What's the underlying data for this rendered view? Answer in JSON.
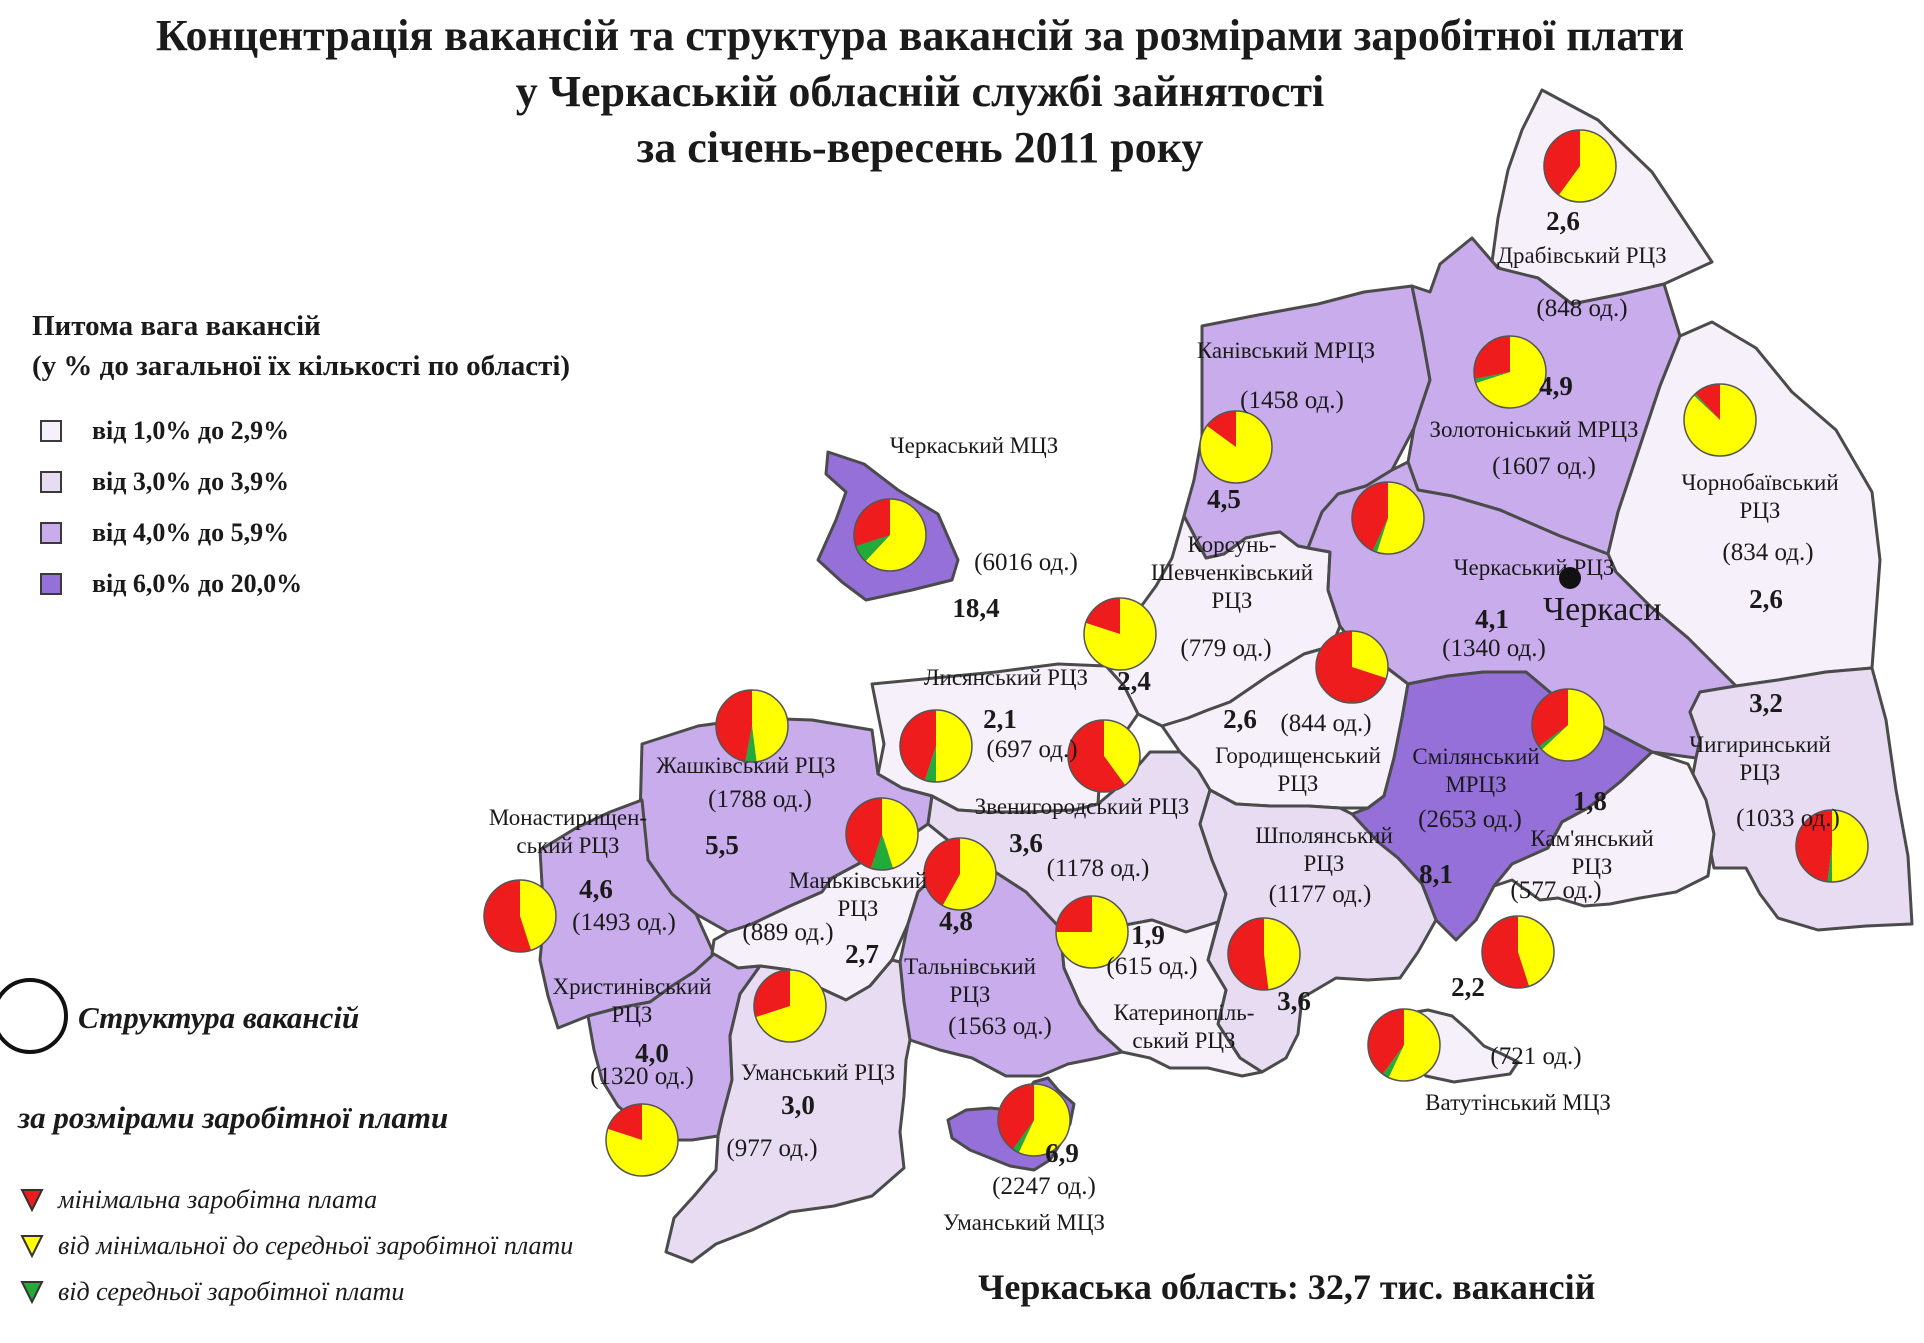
{
  "title": {
    "line1": "Концентрація вакансій та структура вакансій за розмірами заробітної плати",
    "line2": "у Черкаській обласній службі зайнятості",
    "line3": "за січень-вересень 2011 року"
  },
  "legend": {
    "title_line1": "Питома вага вакансій",
    "title_line2": "(у % до загальної їх кількості по області)",
    "classes": [
      {
        "label": "від 1,0% до 2,9%",
        "color": "#f6f0fa"
      },
      {
        "label": "від 3,0% до 3,9%",
        "color": "#e7dcf2"
      },
      {
        "label": "від 4,0% до 5,9%",
        "color": "#c9aceb"
      },
      {
        "label": "від 6,0% до 20,0%",
        "color": "#9470d8"
      }
    ]
  },
  "structure_legend": {
    "title": "Структура вакансій",
    "subtitle": "за розмірами заробітної плати",
    "items": [
      {
        "label": "мінімальна заробітна плата",
        "color": "#ee1c1c"
      },
      {
        "label": "від мінімальної до середньої заробітної плати",
        "color": "#ffff00"
      },
      {
        "label": "від середньої заробітної плати",
        "color": "#22aa3a"
      }
    ]
  },
  "footer": "Черкаська область: 32,7 тис. вакансій",
  "city": {
    "name": "Черкаси"
  },
  "regions": [
    {
      "id": "drabiv",
      "name_lines": [
        "Драбівський РЦЗ"
      ],
      "count": "(848 од.)",
      "percent": "2,6",
      "class": 0,
      "pie": [
        0.4,
        0.6,
        0
      ]
    },
    {
      "id": "kaniv",
      "name_lines": [
        "Канівський МРЦЗ"
      ],
      "count": "(1458 од.)",
      "percent": "4,5",
      "class": 2,
      "pie": [
        0.15,
        0.85,
        0
      ]
    },
    {
      "id": "zolotonosha",
      "name_lines": [
        "Золотоніський МРЦЗ"
      ],
      "count": "(1607 од.)",
      "percent": "4,9",
      "class": 2,
      "pie": [
        0.28,
        0.7,
        0.02
      ]
    },
    {
      "id": "chornobai",
      "name_lines": [
        "Чорнобаївський",
        "РЦЗ"
      ],
      "count": "(834 од.)",
      "percent": "2,6",
      "class": 0,
      "pie": [
        0.12,
        0.87,
        0.01
      ]
    },
    {
      "id": "ch_mcz",
      "name_lines": [
        "Черкаський МЦЗ"
      ],
      "count": "(6016 од.)",
      "percent": "18,4",
      "class": 3,
      "pie": [
        0.3,
        0.62,
        0.08
      ]
    },
    {
      "id": "korsun",
      "name_lines": [
        "Корсунь-",
        "Шевченківський",
        "РЦЗ"
      ],
      "count": "(779 од.)",
      "percent": "2,4",
      "class": 0,
      "pie": [
        0.2,
        0.8,
        0
      ]
    },
    {
      "id": "ch_rcz",
      "name_lines": [
        "Черкаський РЦЗ"
      ],
      "count": "(1340 од.)",
      "percent": "4,1",
      "class": 2,
      "pie": [
        0.43,
        0.55,
        0.02
      ]
    },
    {
      "id": "lysianka",
      "name_lines": [
        "Лисянський РЦЗ"
      ],
      "count": "(697 од.)",
      "percent": "2,1",
      "class": 0,
      "pie": [
        0.45,
        0.5,
        0.05
      ]
    },
    {
      "id": "horodysche",
      "name_lines": [
        "Городищенський",
        "РЦЗ"
      ],
      "count": "(844 од.)",
      "percent": "2,6",
      "class": 0,
      "pie": [
        0.7,
        0.3,
        0
      ]
    },
    {
      "id": "smila",
      "name_lines": [
        "Смілянський",
        "МРЦЗ"
      ],
      "count": "(2653 од.)",
      "percent": "8,1",
      "class": 3,
      "pie": [
        0.35,
        0.63,
        0.02
      ]
    },
    {
      "id": "zhashkiv",
      "name_lines": [
        "Жашківський РЦЗ"
      ],
      "count": "(1788 од.)",
      "percent": "5,5",
      "class": 2,
      "pie": [
        0.47,
        0.48,
        0.05
      ]
    },
    {
      "id": "chyhyryn",
      "name_lines": [
        "Чигиринський",
        "РЦЗ"
      ],
      "count": "(1033 од.)",
      "percent": "3,2",
      "class": 1,
      "pie": [
        0.48,
        0.5,
        0.02
      ]
    },
    {
      "id": "zvenyhorodka",
      "name_lines": [
        "Звенигородський РЦЗ"
      ],
      "count": "(1178 од.)",
      "percent": "3,6",
      "class": 1,
      "pie": [
        0.6,
        0.4,
        0
      ]
    },
    {
      "id": "monastyrysche",
      "name_lines": [
        "Монастирищен-",
        "ський РЦЗ"
      ],
      "count": "(1493 од.)",
      "percent": "4,6",
      "class": 2,
      "pie": [
        0.55,
        0.45,
        0
      ]
    },
    {
      "id": "mankivka",
      "name_lines": [
        "Маньківський",
        "РЦЗ"
      ],
      "count": "(889 од.)",
      "percent": "2,7",
      "class": 0,
      "pie": [
        0.45,
        0.45,
        0.1
      ]
    },
    {
      "id": "talne",
      "name_lines": [
        "Тальнівський",
        "РЦЗ"
      ],
      "count": "(1563 од.)",
      "percent": "4,8",
      "class": 2,
      "pie": [
        0.42,
        0.58,
        0
      ]
    },
    {
      "id": "shpola",
      "name_lines": [
        "Шполянський",
        "РЦЗ"
      ],
      "count": "(1177 од.)",
      "percent": "3,6",
      "class": 1,
      "pie": [
        0.52,
        0.48,
        0
      ]
    },
    {
      "id": "kamianka",
      "name_lines": [
        "Кам'янський",
        "РЦЗ"
      ],
      "count": "(577 од.)",
      "percent": "1,8",
      "class": 0,
      "pie": [
        0.55,
        0.45,
        0
      ]
    },
    {
      "id": "katerynopil",
      "name_lines": [
        "Катеринопіль-",
        "ський РЦЗ"
      ],
      "count": "(615 од.)",
      "percent": "1,9",
      "class": 0,
      "pie": [
        0.25,
        0.75,
        0
      ]
    },
    {
      "id": "khrystynivka",
      "name_lines": [
        "Христинівський",
        "РЦЗ"
      ],
      "count": "(1320 од.)",
      "percent": "4,0",
      "class": 2,
      "pie": [
        0.2,
        0.8,
        0
      ]
    },
    {
      "id": "uman_rcz",
      "name_lines": [
        "Уманський РЦЗ"
      ],
      "count": "(977 од.)",
      "percent": "3,0",
      "class": 1,
      "pie": [
        0.3,
        0.7,
        0
      ]
    },
    {
      "id": "vatutine",
      "name_lines": [
        "Ватутінський МЦЗ"
      ],
      "count": "(721 од.)",
      "percent": "2,2",
      "class": 0,
      "pie": [
        0.4,
        0.57,
        0.03
      ]
    },
    {
      "id": "uman_mcz",
      "name_lines": [
        "Уманський МЦЗ"
      ],
      "count": "(2247 од.)",
      "percent": "6,9",
      "class": 3,
      "pie": [
        0.4,
        0.57,
        0.03
      ]
    }
  ]
}
